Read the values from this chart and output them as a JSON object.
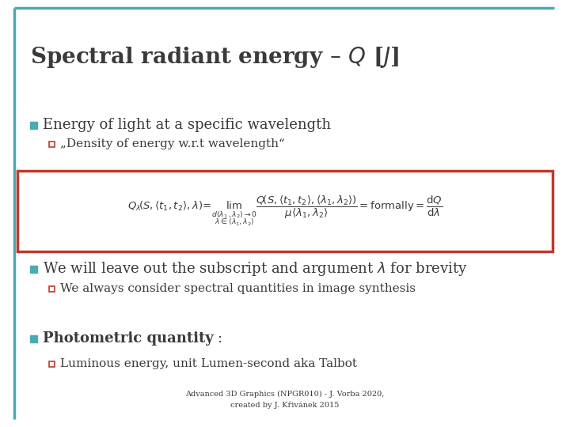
{
  "title": "Spectral radiant energy – $Q$ [$J$]",
  "title_color": "#3a3a3a",
  "title_fontsize": 20,
  "teal_color": "#4baab2",
  "red_color": "#c0392b",
  "bg_color": "#ffffff",
  "text_color": "#3a3a3a",
  "bullet1": "Energy of light at a specific wavelength",
  "subbullet1": "„Density of energy w.r.t wavelength“",
  "formula": "$Q_\\lambda\\!\\left(S,\\langle t_1,t_2\\rangle,\\lambda\\right)\\!=\\! \\lim_{\\substack{d(\\lambda_1,\\lambda_2)\\to 0 \\\\ \\lambda\\in\\langle\\lambda_1,\\lambda_2\\rangle}} \\dfrac{Q\\!\\left(S,\\langle t_1,t_2\\rangle,\\langle\\lambda_1,\\lambda_2\\rangle\\right)}{\\mu\\langle\\lambda_1,\\lambda_2\\rangle} = \\mathrm{formally} = \\dfrac{\\mathrm{d}Q}{\\mathrm{d}\\lambda}$",
  "bullet2": "We will leave out the subscript and argument $\\lambda$ for brevity",
  "subbullet2": "We always consider spectral quantities in image synthesis",
  "bullet3_bold": "Photometric quantity",
  "bullet3_rest": ":",
  "subbullet3": "Luminous energy, unit Lumen-second aka Talbot",
  "footer1": "Advanced 3D Graphics (NPGR010) - J. Vorba 2020,",
  "footer2": "created by J. Křivánek 2015",
  "footer_fontsize": 7
}
